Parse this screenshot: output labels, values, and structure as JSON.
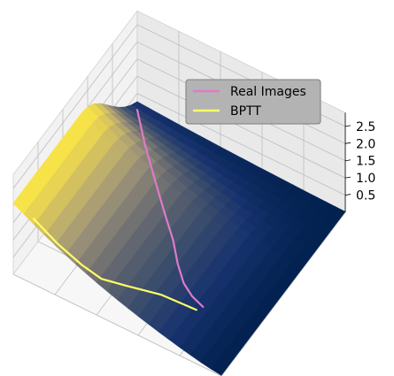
{
  "chart_data": {
    "type": "surface",
    "title": "",
    "xlabel": "",
    "ylabel": "",
    "zlabel": "",
    "zlim": [
      0,
      2.9
    ],
    "z_ticks": [
      "0.5",
      "1.0",
      "1.5",
      "2.0",
      "2.5"
    ],
    "z_tick_values": [
      0.5,
      1.0,
      1.5,
      2.0,
      2.5
    ],
    "grid": true,
    "colormap": "cividis",
    "legend": {
      "placement": "top-right",
      "entries": [
        {
          "label": "Real Images",
          "color": "#e07ac8"
        },
        {
          "label": "BPTT",
          "color": "#ffff66"
        }
      ]
    },
    "surface": {
      "nu": 21,
      "nv": 21,
      "peak_height": 2.05,
      "decay_start": 0.55,
      "decay_scale": 0.55,
      "dip_depth": 0.35
    },
    "series": [
      {
        "name": "Real Images",
        "color": "#e07ac8",
        "points": [
          [
            0.1,
            0.02,
            1.62
          ],
          [
            0.2,
            0.1,
            1.25
          ],
          [
            0.3,
            0.2,
            0.86
          ],
          [
            0.4,
            0.32,
            0.55
          ],
          [
            0.5,
            0.45,
            0.33
          ],
          [
            0.62,
            0.58,
            0.18
          ],
          [
            0.75,
            0.72,
            0.09
          ],
          [
            0.88,
            0.86,
            0.04
          ],
          [
            1.0,
            1.0,
            0.02
          ]
        ]
      },
      {
        "name": "BPTT",
        "color": "#ffff66",
        "points": [
          [
            0.12,
            0.0,
            1.57
          ],
          [
            0.3,
            0.02,
            1.38
          ],
          [
            0.48,
            0.03,
            1.07
          ],
          [
            0.6,
            0.04,
            0.86
          ],
          [
            0.7,
            0.05,
            0.92
          ],
          [
            0.82,
            0.06,
            1.12
          ],
          [
            0.95,
            0.08,
            1.38
          ]
        ]
      }
    ]
  }
}
